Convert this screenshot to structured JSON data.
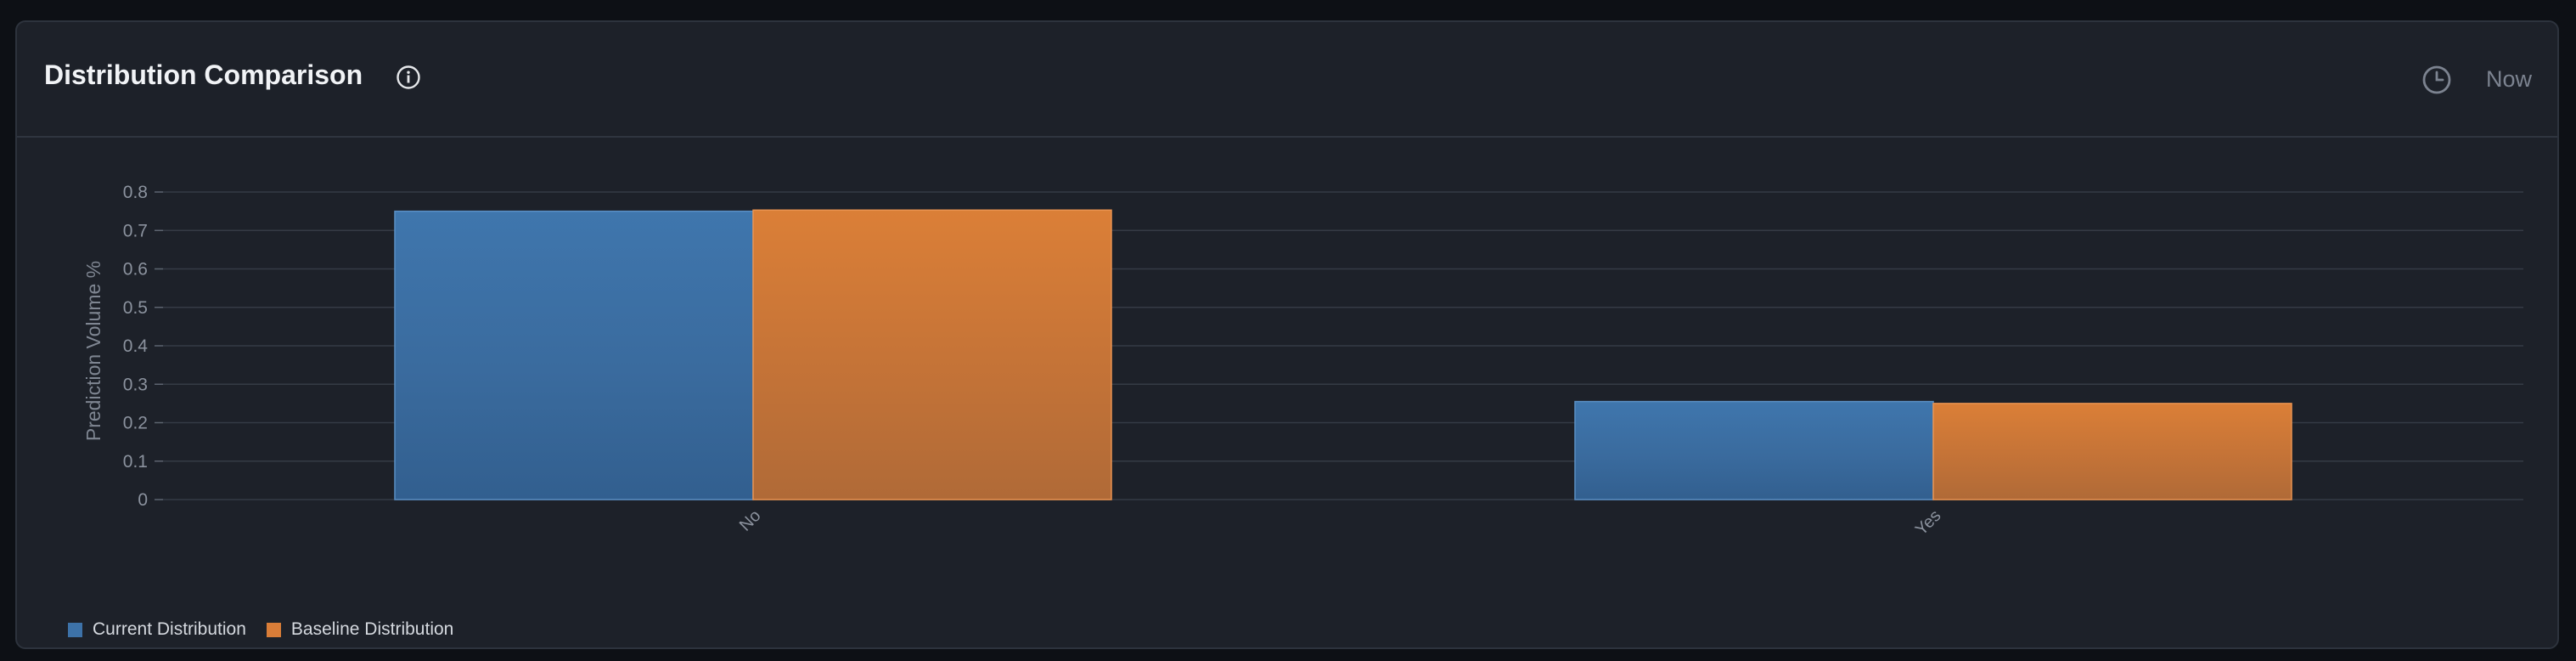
{
  "header": {
    "title": "Distribution Comparison",
    "time_label": "Now",
    "info_icon": "info-icon",
    "clock_icon": "clock-icon"
  },
  "chart_data": {
    "type": "bar",
    "categories": [
      "No",
      "Yes"
    ],
    "series": [
      {
        "name": "Current Distribution",
        "values": [
          0.75,
          0.255
        ],
        "color": "#3d72a8"
      },
      {
        "name": "Baseline Distribution",
        "values": [
          0.753,
          0.25
        ],
        "color": "#d97d38"
      }
    ],
    "xlabel": "",
    "ylabel": "Prediction Volume %",
    "ylim": [
      0,
      0.8
    ],
    "yticks": [
      "0",
      "0.1",
      "0.2",
      "0.3",
      "0.4",
      "0.5",
      "0.6",
      "0.7",
      "0.8"
    ],
    "grid": true,
    "legend_position": "bottom-left"
  }
}
